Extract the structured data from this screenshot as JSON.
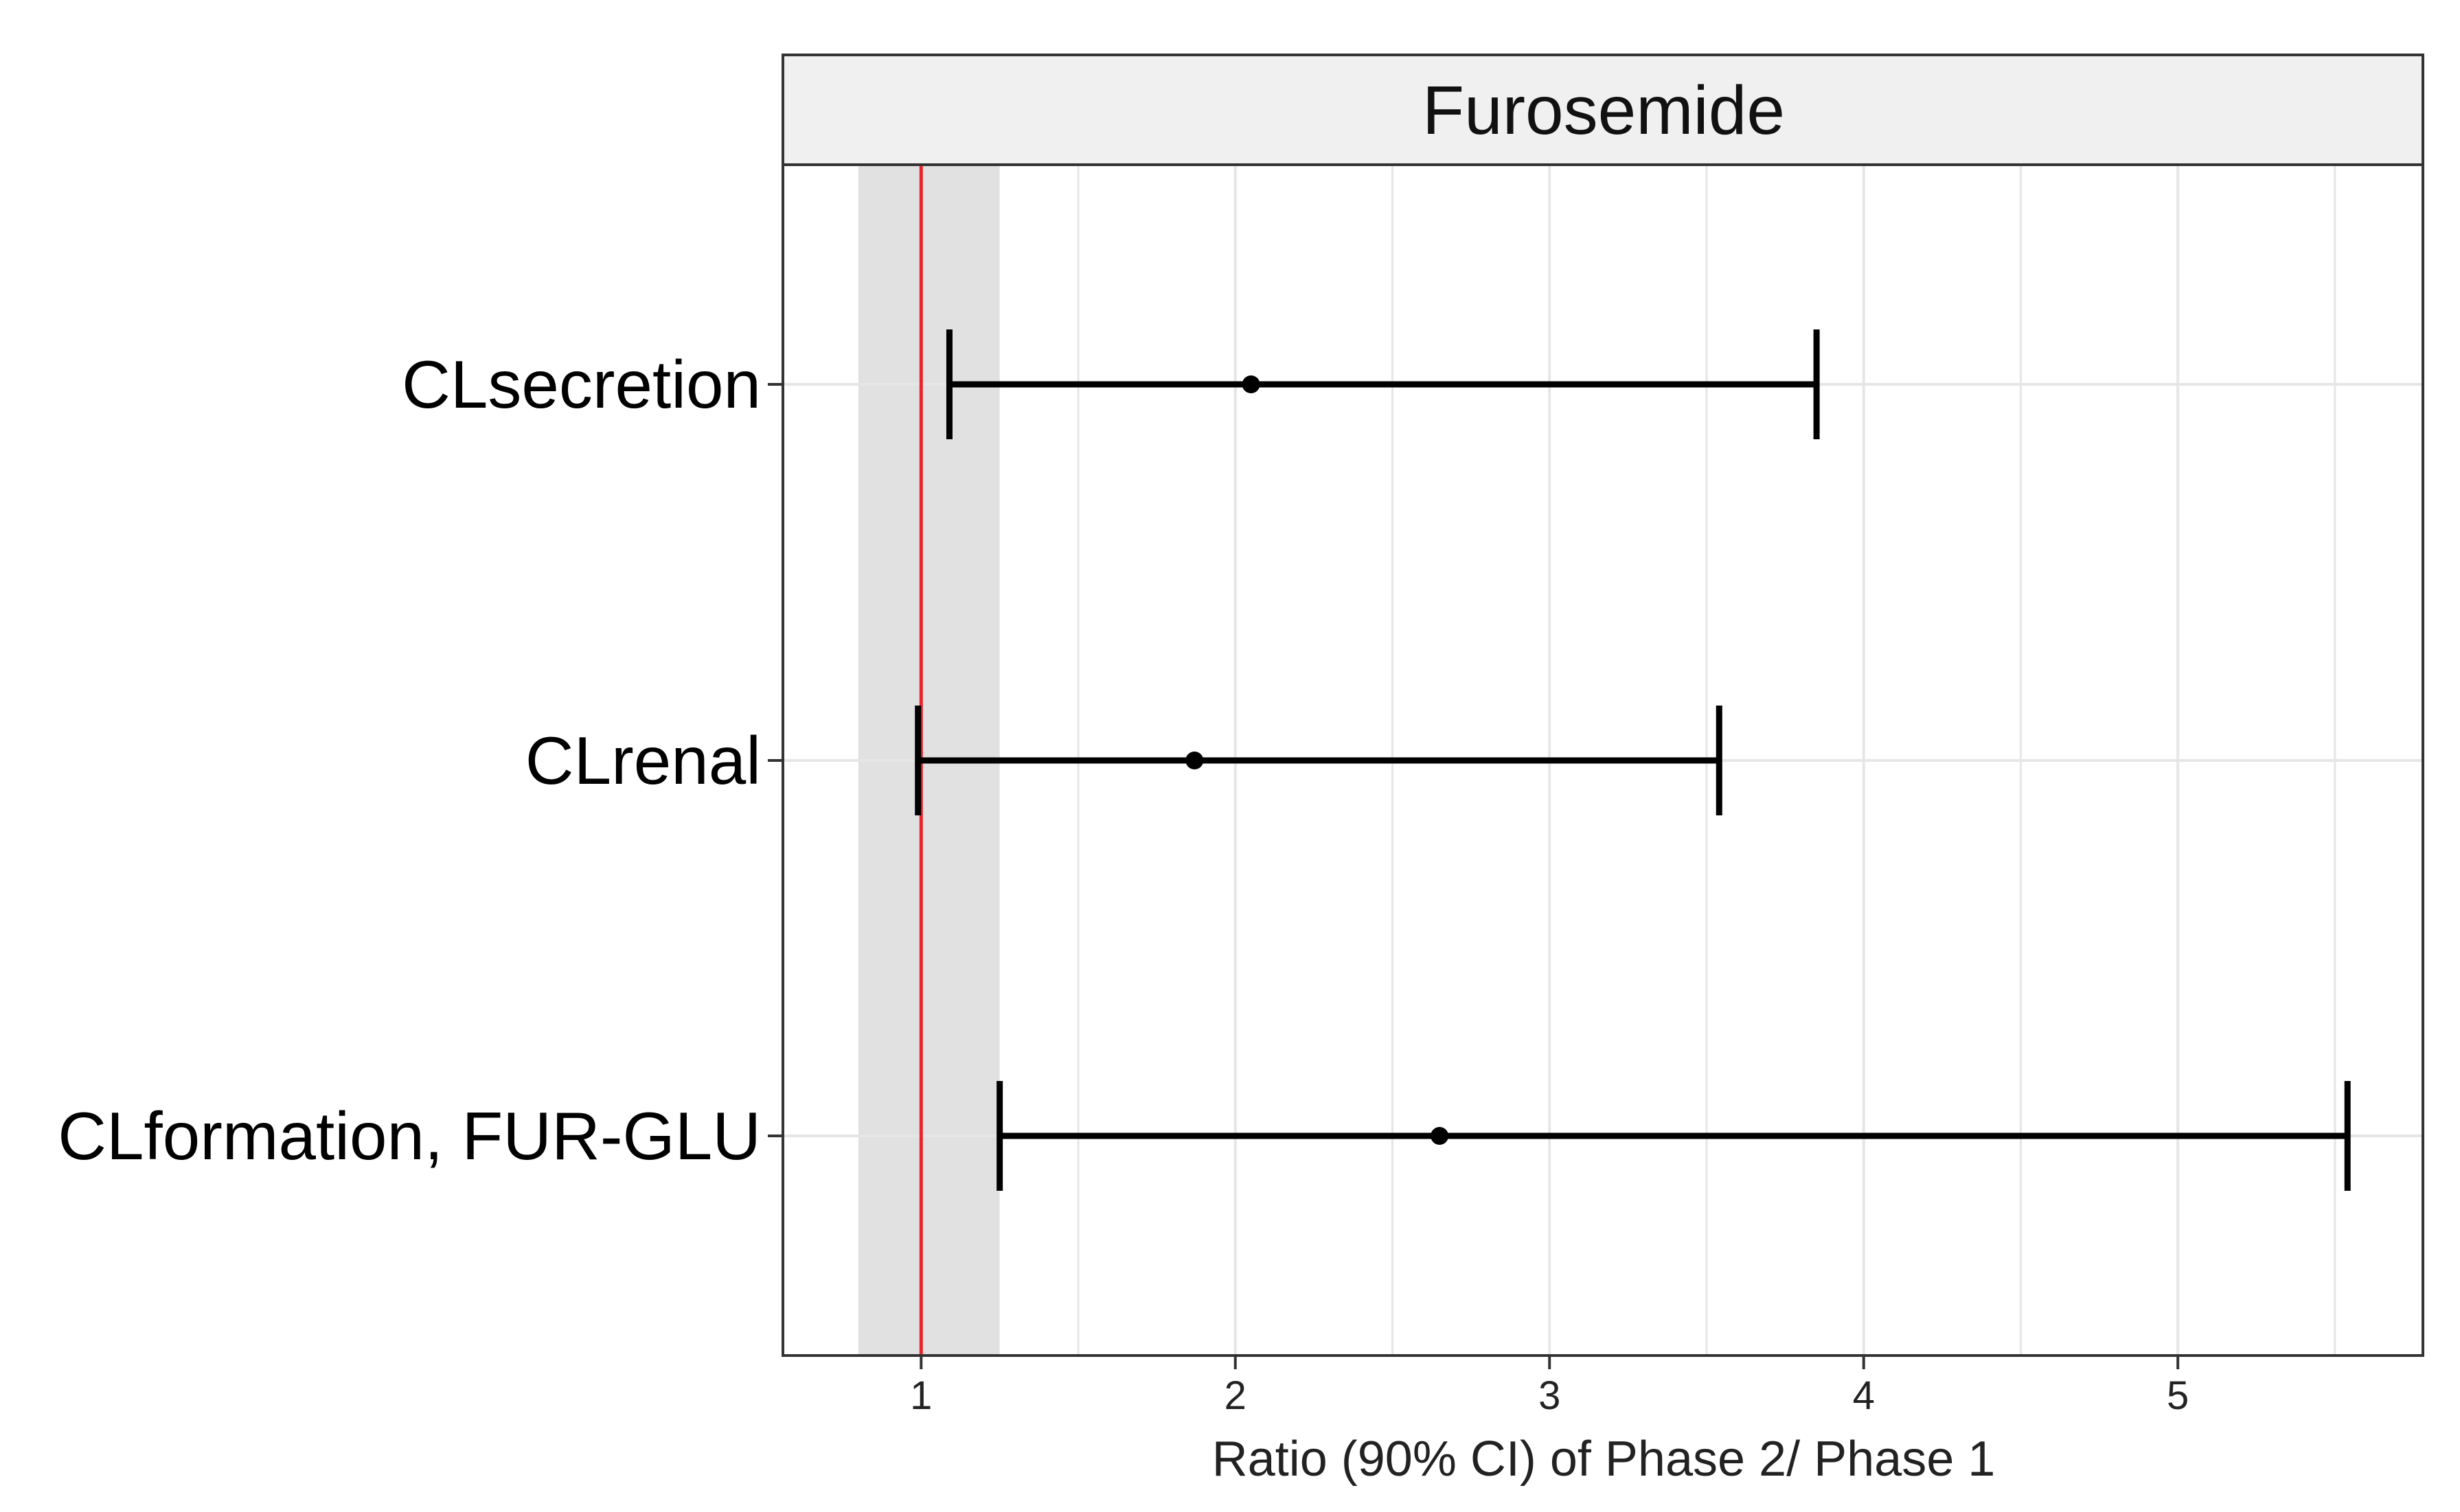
{
  "chart_data": {
    "type": "forest",
    "facet_title": "Furosemide",
    "xlabel": "Ratio (90% CI) of Phase 2/ Phase 1",
    "ylabel": "",
    "xlim": [
      0.56,
      5.78
    ],
    "x_ticks": [
      1,
      2,
      3,
      4,
      5
    ],
    "x_tick_labels": [
      "1",
      "2",
      "3",
      "4",
      "5"
    ],
    "grid": true,
    "reference_line": {
      "x": 1,
      "color": "#e8262a"
    },
    "reference_band": {
      "from": 0.8,
      "to": 1.25,
      "color": "#e1e1e1"
    },
    "categories": [
      "CLsecretion",
      "CLrenal",
      "CLformation, FUR-GLU"
    ],
    "estimates": [
      {
        "label": "CLsecretion",
        "point": 2.05,
        "lower": 1.09,
        "upper": 3.85
      },
      {
        "label": "CLrenal",
        "point": 1.87,
        "lower": 0.99,
        "upper": 3.54
      },
      {
        "label": "CLformation, FUR-GLU",
        "point": 2.65,
        "lower": 1.25,
        "upper": 5.54
      }
    ],
    "colors": {
      "estimate": "#000000",
      "grid": "#e6e6e6",
      "strip": "#f0f0f0",
      "border": "#333333"
    }
  }
}
